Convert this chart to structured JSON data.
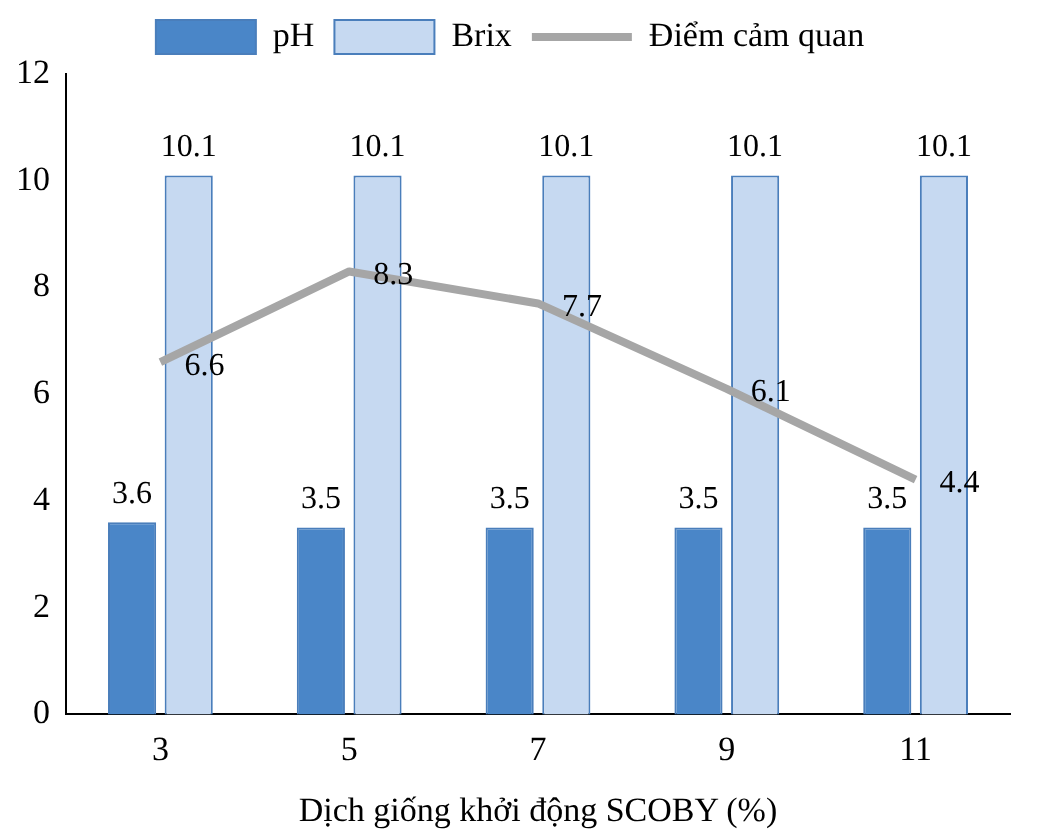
{
  "chart_data": {
    "type": "bar",
    "xlabel": "Dịch giống khởi động SCOBY (%)",
    "categories": [
      "3",
      "5",
      "7",
      "9",
      "11"
    ],
    "series": [
      {
        "name": "pH",
        "color": "#4a86c8",
        "values": [
          3.6,
          3.5,
          3.5,
          3.5,
          3.5
        ]
      },
      {
        "name": "Brix",
        "color": "#c6d9f1",
        "values": [
          10.1,
          10.1,
          10.1,
          10.1,
          10.1
        ]
      },
      {
        "name": "Điểm cảm quan",
        "type": "line",
        "color": "#a6a6a6",
        "values": [
          6.6,
          8.3,
          7.7,
          6.1,
          4.4
        ]
      }
    ],
    "ylim": [
      0,
      12
    ],
    "yticks": [
      0,
      2,
      4,
      6,
      8,
      10,
      12
    ],
    "grid": false,
    "legend": "top",
    "data_labels": true
  }
}
